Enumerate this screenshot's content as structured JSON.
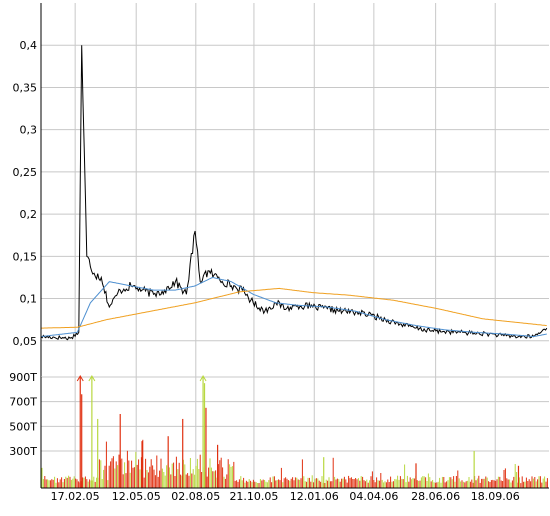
{
  "chart_data": [
    {
      "type": "line",
      "x_labels": [
        "17.02.05",
        "12.05.05",
        "02.08.05",
        "21.10.05",
        "12.01.06",
        "04.04.06",
        "28.06.06",
        "18.09.06"
      ],
      "y_ticks": [
        "0,05",
        "0,1",
        "0,15",
        "0,2",
        "0,25",
        "0,3",
        "0,35",
        "0,4"
      ],
      "y_tick_values": [
        0.05,
        0.1,
        0.15,
        0.2,
        0.25,
        0.3,
        0.35,
        0.4
      ],
      "ylim": [
        0.0,
        0.45
      ],
      "grid": true,
      "series": [
        {
          "kind": "price",
          "color": "#000000",
          "x": [
            "2005-01-01",
            "2005-02-10",
            "2005-02-22",
            "2005-02-26",
            "2005-03-05",
            "2005-03-15",
            "2005-03-25",
            "2005-04-05",
            "2005-04-20",
            "2005-05-05",
            "2005-05-20",
            "2005-06-05",
            "2005-06-20",
            "2005-07-05",
            "2005-07-20",
            "2005-08-01",
            "2005-08-08",
            "2005-08-14",
            "2005-08-22",
            "2005-09-01",
            "2005-09-20",
            "2005-10-05",
            "2005-10-20",
            "2005-11-05",
            "2005-11-20",
            "2005-12-05",
            "2005-12-20",
            "2006-01-10",
            "2006-01-30",
            "2006-02-20",
            "2006-03-10",
            "2006-04-01",
            "2006-04-20",
            "2006-05-10",
            "2006-06-01",
            "2006-06-20",
            "2006-07-10",
            "2006-08-01",
            "2006-08-20",
            "2006-09-10",
            "2006-09-30",
            "2006-10-20",
            "2006-11-10",
            "2006-11-28"
          ],
          "y": [
            0.055,
            0.053,
            0.06,
            0.4,
            0.15,
            0.13,
            0.125,
            0.09,
            0.11,
            0.115,
            0.11,
            0.105,
            0.11,
            0.12,
            0.105,
            0.18,
            0.12,
            0.13,
            0.13,
            0.125,
            0.115,
            0.11,
            0.095,
            0.085,
            0.095,
            0.088,
            0.092,
            0.09,
            0.088,
            0.085,
            0.084,
            0.08,
            0.075,
            0.07,
            0.065,
            0.062,
            0.061,
            0.06,
            0.059,
            0.058,
            0.056,
            0.055,
            0.055,
            0.065
          ]
        },
        {
          "kind": "short moving average",
          "color": "#4d8fd0",
          "x": [
            "2005-01-01",
            "2005-02-20",
            "2005-03-10",
            "2005-04-05",
            "2005-05-05",
            "2005-06-05",
            "2005-07-05",
            "2005-08-01",
            "2005-08-25",
            "2005-09-20",
            "2005-10-20",
            "2005-11-20",
            "2005-12-20",
            "2006-01-30",
            "2006-03-10",
            "2006-04-20",
            "2006-06-01",
            "2006-07-10",
            "2006-08-20",
            "2006-09-30",
            "2006-11-10",
            "2006-11-28"
          ],
          "y": [
            0.055,
            0.06,
            0.095,
            0.12,
            0.115,
            0.11,
            0.11,
            0.115,
            0.125,
            0.12,
            0.105,
            0.095,
            0.092,
            0.09,
            0.085,
            0.075,
            0.068,
            0.063,
            0.06,
            0.058,
            0.055,
            0.058
          ]
        },
        {
          "kind": "long moving average",
          "color": "#f0a020",
          "x": [
            "2005-01-01",
            "2005-02-20",
            "2005-04-01",
            "2005-06-01",
            "2005-08-01",
            "2005-10-01",
            "2005-11-25",
            "2006-01-10",
            "2006-03-01",
            "2006-05-01",
            "2006-07-01",
            "2006-09-01",
            "2006-11-28"
          ],
          "y": [
            0.065,
            0.066,
            0.075,
            0.085,
            0.095,
            0.108,
            0.112,
            0.107,
            0.104,
            0.098,
            0.088,
            0.076,
            0.068
          ]
        }
      ]
    },
    {
      "type": "bar",
      "x_labels": [
        "17.02.05",
        "12.05.05",
        "02.08.05",
        "21.10.05",
        "12.01.06",
        "04.04.06",
        "28.06.06",
        "18.09.06"
      ],
      "y_ticks": [
        "300T",
        "500T",
        "700T",
        "900T"
      ],
      "y_tick_values": [
        300,
        500,
        700,
        900
      ],
      "ylim": [
        0,
        900
      ],
      "grid": true,
      "colors": {
        "down": "#e03010",
        "up": "#b8d840",
        "base": "#e03010"
      },
      "spikes": [
        {
          "x": "2005-02-24",
          "value": 900,
          "color": "#e03010"
        },
        {
          "x": "2005-02-26",
          "value": 760,
          "color": "#e03010"
        },
        {
          "x": "2005-03-12",
          "value": 900,
          "color": "#b8d840"
        },
        {
          "x": "2005-03-20",
          "value": 560,
          "color": "#b8d840"
        },
        {
          "x": "2005-04-20",
          "value": 600,
          "color": "#e03010"
        },
        {
          "x": "2005-05-20",
          "value": 380,
          "color": "#e03010"
        },
        {
          "x": "2005-06-25",
          "value": 420,
          "color": "#e03010"
        },
        {
          "x": "2005-07-15",
          "value": 560,
          "color": "#e03010"
        },
        {
          "x": "2005-08-12",
          "value": 900,
          "color": "#b8d840"
        },
        {
          "x": "2005-08-14",
          "value": 850,
          "color": "#b8d840"
        },
        {
          "x": "2005-08-16",
          "value": 650,
          "color": "#e03010"
        },
        {
          "x": "2005-09-01",
          "value": 350,
          "color": "#e03010"
        },
        {
          "x": "2006-01-25",
          "value": 250,
          "color": "#b8d840"
        },
        {
          "x": "2006-06-01",
          "value": 200,
          "color": "#e03010"
        },
        {
          "x": "2006-08-20",
          "value": 300,
          "color": "#b8d840"
        },
        {
          "x": "2006-10-20",
          "value": 180,
          "color": "#e03010"
        }
      ]
    }
  ]
}
